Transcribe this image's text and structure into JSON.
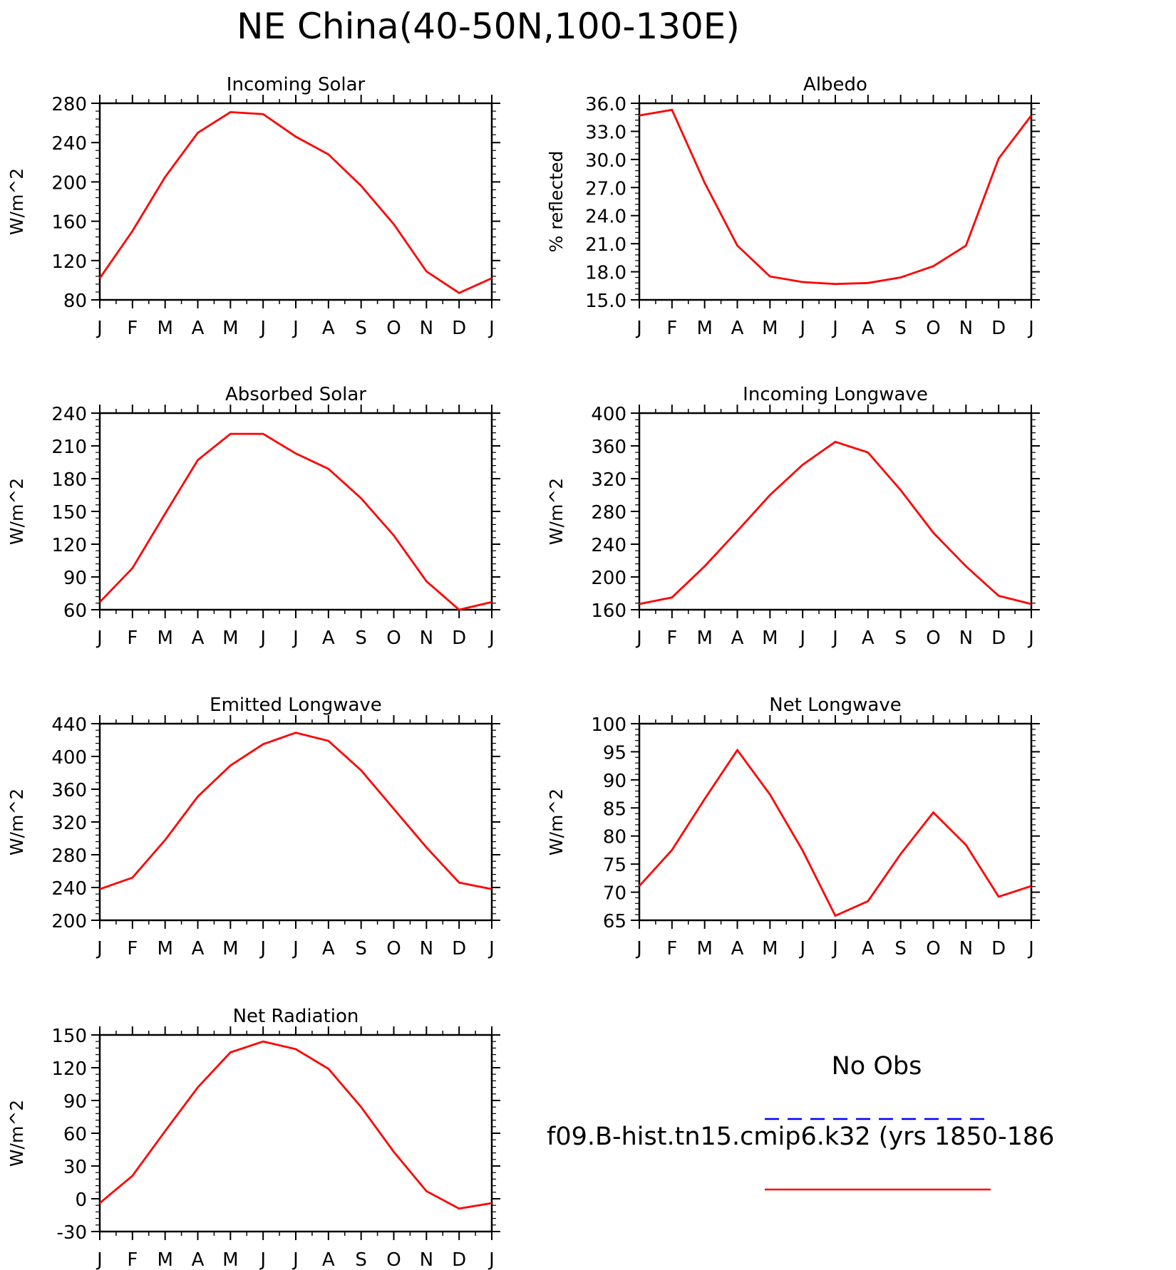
{
  "title": "NE China(40-50N,100-130E)",
  "months": [
    "J",
    "F",
    "M",
    "A",
    "M",
    "J",
    "J",
    "A",
    "S",
    "O",
    "N",
    "D",
    "J"
  ],
  "chart_data": [
    {
      "type": "line",
      "title": "Incoming Solar",
      "ylabel": "W/m^2",
      "ylim": [
        80,
        280
      ],
      "yticks": [
        "80",
        "120",
        "160",
        "200",
        "240",
        "280"
      ],
      "series": [
        {
          "name": "f09.B-hist.tn15.cmip6.k32 (yrs 1850-186",
          "color": "#ff0000",
          "values": [
            102,
            150,
            205,
            250,
            271,
            269,
            246,
            228,
            196,
            157,
            109,
            87,
            102
          ]
        }
      ]
    },
    {
      "type": "line",
      "title": "Albedo",
      "ylabel": "% reflected",
      "ylim": [
        15,
        36
      ],
      "yticks": [
        "15.0",
        "18.0",
        "21.0",
        "24.0",
        "27.0",
        "30.0",
        "33.0",
        "36.0"
      ],
      "series": [
        {
          "name": "f09.B-hist.tn15.cmip6.k32 (yrs 1850-186",
          "color": "#ff0000",
          "values": [
            34.7,
            35.3,
            27.5,
            20.8,
            17.5,
            16.9,
            16.7,
            16.8,
            17.4,
            18.6,
            20.8,
            30.1,
            34.7
          ]
        }
      ]
    },
    {
      "type": "line",
      "title": "Absorbed Solar",
      "ylabel": "W/m^2",
      "ylim": [
        60,
        240
      ],
      "yticks": [
        "60",
        "90",
        "120",
        "150",
        "180",
        "210",
        "240"
      ],
      "series": [
        {
          "name": "f09.B-hist.tn15.cmip6.k32 (yrs 1850-186",
          "color": "#ff0000",
          "values": [
            67,
            98,
            148,
            197,
            221,
            221,
            203,
            189,
            162,
            128,
            86,
            60,
            67
          ]
        }
      ]
    },
    {
      "type": "line",
      "title": "Incoming Longwave",
      "ylabel": "W/m^2",
      "ylim": [
        160,
        400
      ],
      "yticks": [
        "160",
        "200",
        "240",
        "280",
        "320",
        "360",
        "400"
      ],
      "series": [
        {
          "name": "f09.B-hist.tn15.cmip6.k32 (yrs 1850-186",
          "color": "#ff0000",
          "values": [
            167,
            175,
            213,
            256,
            300,
            337,
            365,
            352,
            306,
            254,
            213,
            177,
            167
          ]
        }
      ]
    },
    {
      "type": "line",
      "title": "Emitted Longwave",
      "ylabel": "W/m^2",
      "ylim": [
        200,
        440
      ],
      "yticks": [
        "200",
        "240",
        "280",
        "320",
        "360",
        "400",
        "440"
      ],
      "series": [
        {
          "name": "f09.B-hist.tn15.cmip6.k32 (yrs 1850-186",
          "color": "#ff0000",
          "values": [
            238,
            252,
            298,
            351,
            389,
            415,
            429,
            419,
            383,
            336,
            289,
            246,
            238
          ]
        }
      ]
    },
    {
      "type": "line",
      "title": "Net Longwave",
      "ylabel": "W/m^2",
      "ylim": [
        65,
        100
      ],
      "yticks": [
        "65",
        "70",
        "75",
        "80",
        "85",
        "90",
        "95",
        "100"
      ],
      "series": [
        {
          "name": "f09.B-hist.tn15.cmip6.k32 (yrs 1850-186",
          "color": "#ff0000",
          "values": [
            71.1,
            77.5,
            86.6,
            95.3,
            87.4,
            77.4,
            65.8,
            68.4,
            76.8,
            84.2,
            78.4,
            69.2,
            71.1
          ]
        }
      ]
    },
    {
      "type": "line",
      "title": "Net Radiation",
      "ylabel": "W/m^2",
      "ylim": [
        -30,
        150
      ],
      "yticks": [
        "-30",
        "0",
        "30",
        "60",
        "90",
        "120",
        "150"
      ],
      "series": [
        {
          "name": "f09.B-hist.tn15.cmip6.k32 (yrs 1850-186",
          "color": "#ff0000",
          "values": [
            -4,
            21,
            62,
            102,
            134,
            144,
            137,
            119,
            84,
            43,
            7,
            -9,
            -4
          ]
        }
      ]
    }
  ],
  "legend": {
    "obs_label": "No Obs",
    "obs_color": "#0000ff",
    "obs_style": "dashed",
    "model_label": "f09.B-hist.tn15.cmip6.k32 (yrs 1850-186",
    "model_color": "#ff0000",
    "model_style": "solid"
  }
}
